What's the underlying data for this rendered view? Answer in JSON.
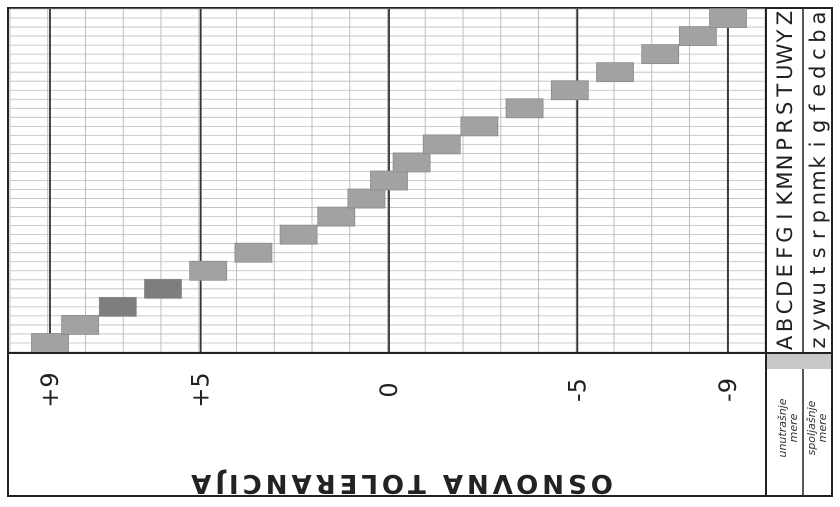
{
  "title": "OSNOVNA TOLERANCIJA",
  "tolerance_labels": [
    "+9",
    "+5",
    "0",
    "-5",
    "-9"
  ],
  "inner_label": {
    "line1": "unutrašnje",
    "line2": "mere"
  },
  "outer_label": {
    "line1": "spoljašnje",
    "line2": "mere"
  },
  "inner_letters": [
    "A",
    "B",
    "C",
    "D",
    "E",
    "F",
    "G",
    "I",
    "K",
    "M",
    "N",
    "P",
    "R",
    "S",
    "T",
    "U",
    "W",
    "Y",
    "Z"
  ],
  "outer_letters": [
    "z",
    "y",
    "w",
    "u",
    "t",
    "s",
    "r",
    "p",
    "n",
    "m",
    "k",
    "i",
    "g",
    "f",
    "e",
    "d",
    "c",
    "b",
    "a"
  ],
  "colors": {
    "bar": "#a2a2a2",
    "bar_dark": "#7e7e7e",
    "grid": "#bdbdbd",
    "line": "#333333",
    "paper": "#ffffff",
    "header": "#c8c8c8"
  },
  "chart_data": {
    "type": "bar",
    "categories": [
      "A",
      "B",
      "C",
      "D",
      "E",
      "F",
      "G",
      "I",
      "K",
      "M",
      "N",
      "P",
      "R",
      "S",
      "T",
      "U",
      "W",
      "Y",
      "Z"
    ],
    "values": [
      9,
      8.2,
      7.2,
      6,
      4.8,
      3.6,
      2.4,
      1.4,
      0.6,
      0,
      -0.6,
      -1.4,
      -2.4,
      -3.6,
      -4.8,
      -6,
      -7.2,
      -8.2,
      -9
    ],
    "value_axis": [
      -9,
      9
    ]
  }
}
